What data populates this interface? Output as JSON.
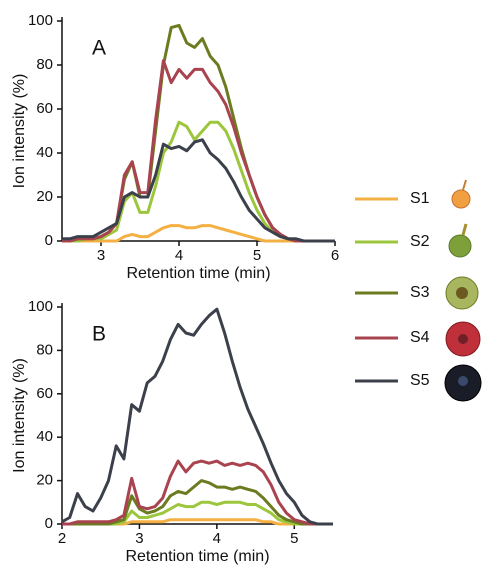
{
  "chart_data": [
    {
      "type": "line",
      "panel_label": "A",
      "x_label": "Retention time (min)",
      "y_label": "Ion intensity (%)",
      "xlim": [
        2.5,
        6
      ],
      "xticks": [
        3,
        4,
        5,
        6
      ],
      "ylim": [
        0,
        100
      ],
      "yticks": [
        0,
        20,
        40,
        60,
        80,
        100
      ],
      "x": [
        2.5,
        2.6,
        2.7,
        2.8,
        2.9,
        3.0,
        3.1,
        3.2,
        3.3,
        3.4,
        3.5,
        3.6,
        3.7,
        3.8,
        3.9,
        4.0,
        4.1,
        4.2,
        4.3,
        4.4,
        4.5,
        4.6,
        4.7,
        4.8,
        4.9,
        5.0,
        5.1,
        5.2,
        5.3,
        5.4,
        5.5,
        5.6,
        5.7,
        5.8,
        5.9,
        6.0
      ],
      "series": [
        {
          "name": "S1",
          "color": "#f5b043",
          "values": [
            0,
            0,
            0,
            0,
            0,
            0,
            0,
            0,
            2,
            3,
            2,
            2,
            4,
            6,
            7,
            7,
            6,
            6,
            7,
            7,
            6,
            5,
            4,
            3,
            2,
            1,
            0,
            0,
            0,
            0,
            0,
            0,
            0,
            0,
            0,
            0
          ]
        },
        {
          "name": "S2",
          "color": "#9cc63c",
          "values": [
            0,
            0,
            0,
            1,
            1,
            1,
            3,
            5,
            18,
            22,
            13,
            13,
            25,
            40,
            45,
            54,
            52,
            46,
            50,
            54,
            54,
            50,
            42,
            32,
            22,
            14,
            8,
            4,
            2,
            1,
            0,
            0,
            0,
            0,
            0,
            0
          ]
        },
        {
          "name": "S3",
          "color": "#6b7b1f",
          "values": [
            0,
            0,
            1,
            1,
            1,
            2,
            4,
            8,
            28,
            36,
            20,
            20,
            50,
            80,
            97,
            98,
            90,
            88,
            92,
            84,
            80,
            70,
            56,
            42,
            30,
            20,
            12,
            6,
            3,
            1,
            0,
            0,
            0,
            0,
            0,
            0
          ]
        },
        {
          "name": "S4",
          "color": "#a8434f",
          "values": [
            0,
            0,
            1,
            1,
            1,
            2,
            4,
            8,
            30,
            36,
            22,
            22,
            55,
            82,
            72,
            78,
            74,
            78,
            78,
            72,
            68,
            62,
            52,
            40,
            30,
            20,
            12,
            6,
            3,
            1,
            0,
            0,
            0,
            0,
            0,
            0
          ]
        },
        {
          "name": "S5",
          "color": "#3b404b",
          "values": [
            1,
            1,
            2,
            2,
            2,
            4,
            6,
            8,
            20,
            22,
            20,
            20,
            30,
            44,
            42,
            43,
            41,
            45,
            46,
            40,
            37,
            33,
            27,
            20,
            14,
            10,
            6,
            4,
            2,
            1,
            1,
            0,
            0,
            0,
            0,
            0
          ]
        }
      ]
    },
    {
      "type": "line",
      "panel_label": "B",
      "x_label": "Retention time (min)",
      "y_label": "Ion intensity (%)",
      "xlim": [
        2,
        5.5
      ],
      "xticks": [
        2,
        3,
        4,
        5
      ],
      "ylim": [
        0,
        100
      ],
      "yticks": [
        0,
        20,
        40,
        60,
        80,
        100
      ],
      "x": [
        2.0,
        2.1,
        2.2,
        2.3,
        2.4,
        2.5,
        2.6,
        2.7,
        2.8,
        2.9,
        3.0,
        3.1,
        3.2,
        3.3,
        3.4,
        3.5,
        3.6,
        3.7,
        3.8,
        3.9,
        4.0,
        4.1,
        4.2,
        4.3,
        4.4,
        4.5,
        4.6,
        4.7,
        4.8,
        4.9,
        5.0,
        5.1,
        5.2,
        5.3,
        5.4,
        5.5
      ],
      "series": [
        {
          "color": "#f5b043",
          "values": [
            0,
            0,
            0,
            0,
            0,
            0,
            0,
            0,
            0,
            1,
            1,
            1,
            1,
            1,
            2,
            2,
            2,
            2,
            2,
            2,
            2,
            2,
            2,
            2,
            2,
            2,
            1,
            1,
            0,
            0,
            0,
            0,
            0,
            0,
            0,
            0
          ]
        },
        {
          "color": "#9cc63c",
          "values": [
            0,
            0,
            0,
            0,
            0,
            0,
            0,
            0,
            1,
            6,
            3,
            3,
            4,
            5,
            7,
            9,
            8,
            8,
            10,
            10,
            9,
            10,
            10,
            10,
            9,
            9,
            7,
            5,
            2,
            1,
            0,
            0,
            0,
            0,
            0,
            0
          ]
        },
        {
          "color": "#6b7b1f",
          "values": [
            0,
            0,
            0,
            0,
            0,
            0,
            0,
            1,
            2,
            13,
            7,
            5,
            6,
            8,
            13,
            15,
            14,
            17,
            20,
            19,
            17,
            17,
            16,
            17,
            16,
            15,
            12,
            8,
            4,
            2,
            1,
            0,
            0,
            0,
            0,
            0
          ]
        },
        {
          "color": "#a8434f",
          "values": [
            0,
            0,
            1,
            1,
            1,
            1,
            1,
            2,
            4,
            21,
            8,
            7,
            8,
            12,
            22,
            29,
            24,
            28,
            29,
            28,
            29,
            27,
            28,
            27,
            28,
            27,
            24,
            18,
            10,
            5,
            2,
            1,
            0,
            0,
            0,
            0
          ]
        },
        {
          "color": "#3b404b",
          "values": [
            1,
            3,
            14,
            8,
            6,
            12,
            20,
            36,
            30,
            55,
            52,
            65,
            68,
            75,
            85,
            92,
            88,
            87,
            92,
            96,
            99,
            88,
            75,
            63,
            53,
            45,
            37,
            28,
            20,
            14,
            10,
            4,
            1,
            0,
            0,
            0
          ]
        }
      ]
    }
  ]
}
